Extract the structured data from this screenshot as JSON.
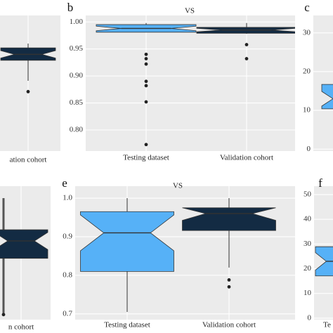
{
  "chart_data": [
    {
      "type": "box",
      "categories": [
        "ation cohort"
      ],
      "ylim": [
        0.761,
        1.012
      ],
      "boxes": [
        {
          "color": "#132b43",
          "whisker_low": 0.891,
          "q1": 0.929,
          "median": 0.94,
          "q3": 0.952,
          "whisker_high": 0.96,
          "outliers": [
            0.871
          ]
        }
      ]
    },
    {
      "type": "box",
      "panel_label": "b",
      "title": "VS",
      "categories": [
        "Testing dataset",
        "Validation cohort"
      ],
      "ylim": [
        0.761,
        1.012
      ],
      "yticks": [
        {
          "value": 0.8,
          "label": "0.80"
        },
        0.85,
        {
          "value": 0.9,
          "label": "0.90"
        },
        0.95,
        {
          "value": 1.0,
          "label": "1.00"
        }
      ],
      "boxes": [
        {
          "color": "#56b1f7",
          "whisker_low": 0.981,
          "q1": 0.981,
          "median": 0.988,
          "q3": 0.995,
          "whisker_high": 0.998,
          "outliers": [
            0.94,
            0.932,
            0.922,
            0.89,
            0.882,
            0.852,
            0.773
          ]
        },
        {
          "color": "#132b43",
          "whisker_low": 0.978,
          "q1": 0.979,
          "median": 0.985,
          "q3": 0.99,
          "whisker_high": 0.998,
          "outliers": [
            0.958,
            0.932
          ]
        }
      ]
    },
    {
      "type": "box",
      "panel_label": "c",
      "ylim": [
        -0.5,
        34.5
      ],
      "yticks": [
        0,
        10,
        20,
        30
      ],
      "boxes": [
        {
          "color": "#56b1f7",
          "whisker_low": 10.4,
          "q1": 10.4,
          "median": 13,
          "q3": 16.7,
          "whisker_high": 16.7,
          "outliers": []
        }
      ]
    },
    {
      "type": "box",
      "categories": [
        "n cohort"
      ],
      "ylim": [
        0.685,
        1.031
      ],
      "boxes": [
        {
          "color": "#132b43",
          "whisker_low": 0.7,
          "q1": 0.844,
          "median": 0.889,
          "q3": 0.918,
          "whisker_high": 1.0,
          "outliers": [
            0.698
          ]
        }
      ]
    },
    {
      "type": "box",
      "panel_label": "e",
      "title": "VS",
      "categories": [
        "Testing dataset",
        "Validation cohort"
      ],
      "ylim": [
        0.685,
        1.031
      ],
      "yticks": [
        0.7,
        0.8,
        0.9,
        {
          "value": 1.0,
          "label": "1.0"
        }
      ],
      "boxes": [
        {
          "color": "#56b1f7",
          "whisker_low": 0.705,
          "q1": 0.81,
          "median": 0.91,
          "q3": 0.965,
          "whisker_high": 1.0,
          "outliers": []
        },
        {
          "color": "#132b43",
          "whisker_low": 0.82,
          "q1": 0.916,
          "median": 0.96,
          "q3": 0.975,
          "whisker_high": 1.0,
          "outliers": [
            0.788,
            0.77
          ]
        }
      ]
    },
    {
      "type": "box",
      "panel_label": "f",
      "categories": [
        "Te"
      ],
      "ylim": [
        -0.6,
        53.4
      ],
      "yticks": [
        0,
        10,
        20,
        30,
        40,
        50
      ],
      "boxes": [
        {
          "color": "#56b1f7",
          "whisker_low": 17.1,
          "q1": 17.1,
          "median": 23,
          "q3": 28.9,
          "whisker_high": 34,
          "outliers": []
        }
      ]
    }
  ]
}
